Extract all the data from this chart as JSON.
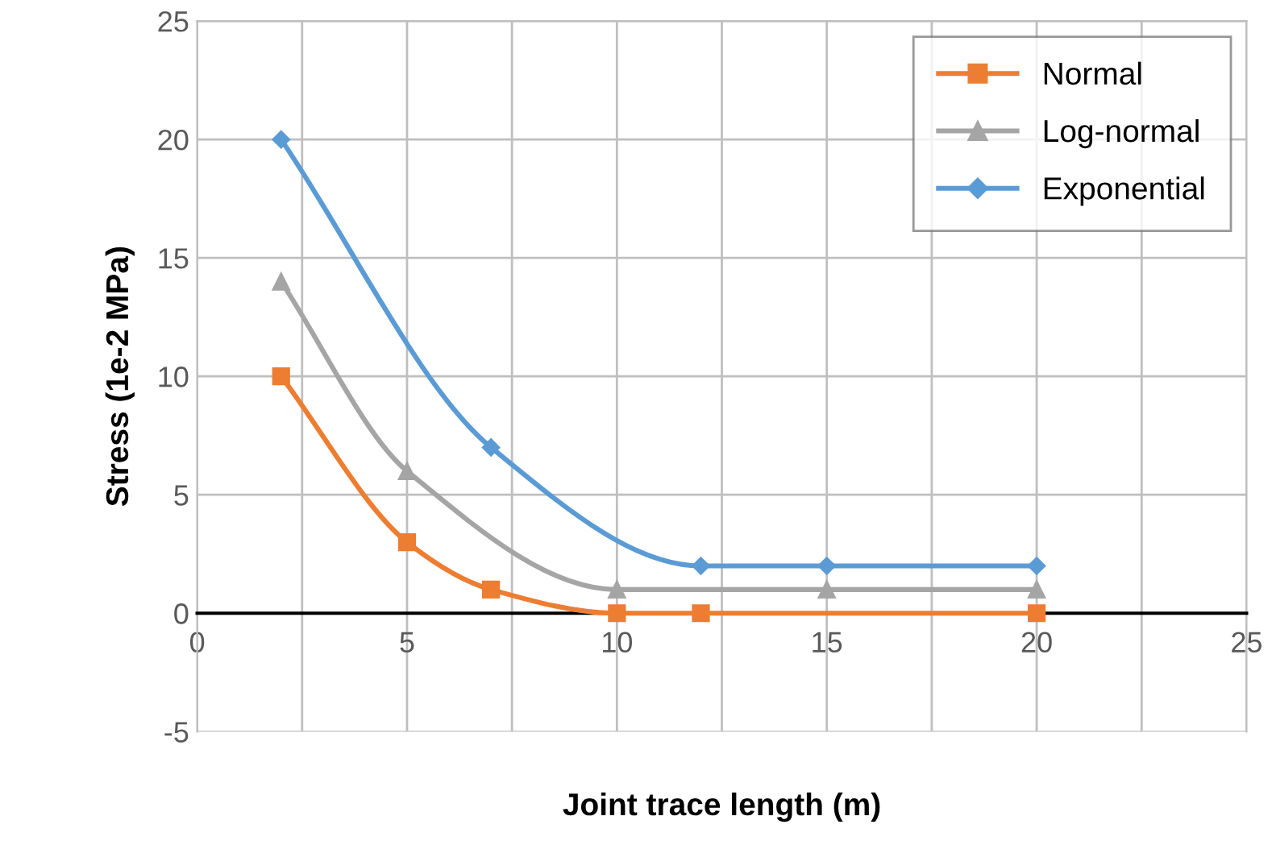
{
  "chart_data": {
    "type": "line",
    "xlabel": "Joint trace length (m)",
    "ylabel": "Stress (1e-2 MPa)",
    "xlim": [
      0,
      25
    ],
    "ylim": [
      -5,
      25
    ],
    "xticks": [
      0,
      {
        "value": 2.5,
        "label": null
      },
      5,
      {
        "value": 7.5,
        "label": null
      },
      10,
      {
        "value": 12.5,
        "label": null
      },
      15,
      {
        "value": 17.5,
        "label": null
      },
      20,
      {
        "value": 22.5,
        "label": null
      },
      25
    ],
    "yticks": [
      -5,
      0,
      5,
      10,
      15,
      20,
      25
    ],
    "grid": true,
    "legend": "top right",
    "series": [
      {
        "name": "Normal",
        "color": "#ed7d31",
        "marker": "square",
        "x": [
          2,
          5,
          7,
          10,
          12,
          20
        ],
        "values": [
          10,
          3,
          1,
          0,
          0,
          0
        ]
      },
      {
        "name": "Log-normal",
        "color": "#a5a5a5",
        "marker": "triangle",
        "x": [
          2,
          5,
          10,
          15,
          20
        ],
        "values": [
          14,
          6,
          1,
          1,
          1
        ]
      },
      {
        "name": "Exponential",
        "color": "#5b9bd5",
        "marker": "diamond",
        "x": [
          2,
          7,
          12,
          15,
          20
        ],
        "values": [
          20,
          7,
          2,
          2,
          2
        ]
      }
    ]
  }
}
